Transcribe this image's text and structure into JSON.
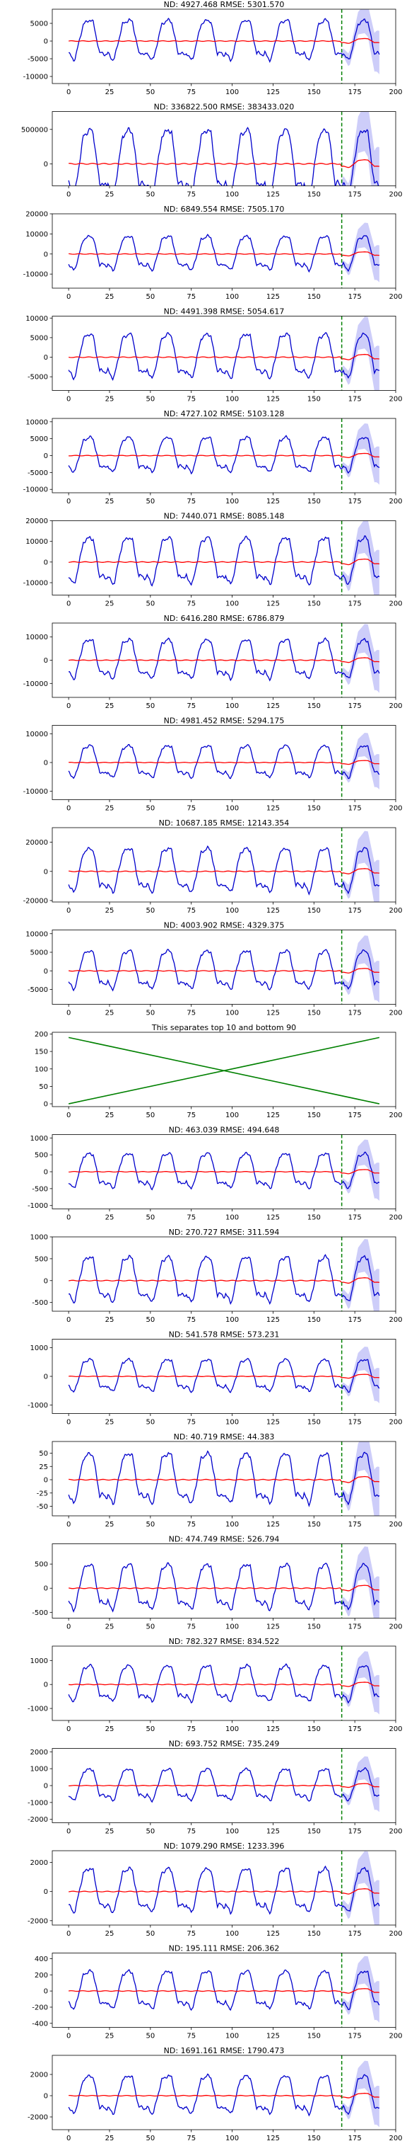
{
  "chart_data": [
    {
      "type": "line",
      "title": "ND:  4927.468 RMSE:  5301.570",
      "amp": 6000,
      "yticks": [
        5000,
        0,
        -5000,
        -10000
      ],
      "ylim": [
        -12000,
        9000
      ],
      "xlim": [
        -10,
        200
      ],
      "xticks": [
        0,
        25,
        50,
        75,
        100,
        125,
        150,
        175,
        200
      ],
      "show_xticks": true,
      "forecast_start": 167
    },
    {
      "type": "line",
      "title": "ND:  336822.500 RMSE:  383433.020",
      "amp": 500000,
      "yticks": [
        500000,
        0
      ],
      "ylim": [
        -320000,
        760000
      ],
      "xlim": [
        -10,
        200
      ],
      "xticks": [
        0,
        25,
        50,
        75,
        100,
        125,
        150,
        175,
        200
      ],
      "show_xticks": true,
      "forecast_start": 167
    },
    {
      "type": "line",
      "title": "ND:  6849.554 RMSE:  7505.170",
      "amp": 9000,
      "yticks": [
        20000,
        10000,
        0,
        -10000
      ],
      "ylim": [
        -17000,
        20000
      ],
      "xlim": [
        -10,
        200
      ],
      "xticks": [
        0,
        25,
        50,
        75,
        100,
        125,
        150,
        175,
        200
      ],
      "show_xticks": true,
      "forecast_start": 167
    },
    {
      "type": "line",
      "title": "ND:  4491.398 RMSE:  5054.617",
      "amp": 6000,
      "yticks": [
        10000,
        5000,
        0,
        -5000
      ],
      "ylim": [
        -8500,
        10500
      ],
      "xlim": [
        -10,
        200
      ],
      "xticks": [
        0,
        25,
        50,
        75,
        100,
        125,
        150,
        175,
        200
      ],
      "show_xticks": true,
      "forecast_start": 167
    },
    {
      "type": "line",
      "title": "ND:  4727.102 RMSE:  5103.128",
      "amp": 5500,
      "yticks": [
        10000,
        5000,
        0,
        -5000,
        -10000
      ],
      "ylim": [
        -11000,
        11000
      ],
      "xlim": [
        -10,
        200
      ],
      "xticks": [
        0,
        25,
        50,
        75,
        100,
        125,
        150,
        175,
        200
      ],
      "show_xticks": true,
      "forecast_start": 167
    },
    {
      "type": "line",
      "title": "ND:  7440.071 RMSE:  8085.148",
      "amp": 12000,
      "yticks": [
        20000,
        10000,
        0,
        -10000
      ],
      "ylim": [
        -16000,
        20000
      ],
      "xlim": [
        -10,
        200
      ],
      "xticks": [
        0,
        25,
        50,
        75,
        100,
        125,
        150,
        175,
        200
      ],
      "show_xticks": true,
      "forecast_start": 167
    },
    {
      "type": "line",
      "title": "ND:  6416.280 RMSE:  6786.879",
      "amp": 9000,
      "yticks": [
        10000,
        0,
        -10000
      ],
      "ylim": [
        -16000,
        16000
      ],
      "xlim": [
        -10,
        200
      ],
      "xticks": [
        0,
        25,
        50,
        75,
        100,
        125,
        150,
        175,
        200
      ],
      "show_xticks": true,
      "forecast_start": 167
    },
    {
      "type": "line",
      "title": "ND:  4981.452 RMSE:  5294.175",
      "amp": 6000,
      "yticks": [
        10000,
        0,
        -10000
      ],
      "ylim": [
        -13000,
        13000
      ],
      "xlim": [
        -10,
        200
      ],
      "xticks": [
        0,
        25,
        50,
        75,
        100,
        125,
        150,
        175,
        200
      ],
      "show_xticks": true,
      "forecast_start": 167
    },
    {
      "type": "line",
      "title": "ND:  10687.185 RMSE:  12143.354",
      "amp": 16000,
      "yticks": [
        20000,
        0,
        -20000
      ],
      "ylim": [
        -21000,
        30000
      ],
      "xlim": [
        -10,
        200
      ],
      "xticks": [
        0,
        25,
        50,
        75,
        100,
        125,
        150,
        175,
        200
      ],
      "show_xticks": true,
      "forecast_start": 167
    },
    {
      "type": "line",
      "title": "ND:  4003.902 RMSE:  4329.375",
      "amp": 5500,
      "yticks": [
        10000,
        5000,
        0,
        -5000
      ],
      "ylim": [
        -9000,
        11000
      ],
      "xlim": [
        -10,
        200
      ],
      "xticks": [
        0,
        25,
        50,
        75,
        100,
        125,
        150,
        175,
        200
      ],
      "show_xticks": true,
      "forecast_start": 167
    },
    {
      "type": "separator",
      "title": "This separates top 10 and bottom 90",
      "yticks": [
        200,
        150,
        100,
        50,
        0
      ],
      "ylim": [
        -8,
        205
      ],
      "xlim": [
        -10,
        200
      ],
      "xticks": [
        0,
        25,
        50,
        75,
        100,
        125,
        150,
        175,
        200
      ],
      "show_xticks": true,
      "lines": [
        {
          "x": [
            0,
            190
          ],
          "y": [
            190,
            0
          ]
        },
        {
          "x": [
            0,
            190
          ],
          "y": [
            0,
            190
          ]
        }
      ]
    },
    {
      "type": "line",
      "title": "ND:  463.039 RMSE:  494.648",
      "amp": 550,
      "yticks": [
        1000,
        500,
        0,
        -500,
        -1000
      ],
      "ylim": [
        -1100,
        1100
      ],
      "xlim": [
        -10,
        200
      ],
      "xticks": [
        0,
        25,
        50,
        75,
        100,
        125,
        150,
        175,
        200
      ],
      "show_xticks": true,
      "forecast_start": 167
    },
    {
      "type": "line",
      "title": "ND:  270.727 RMSE:  311.594",
      "amp": 550,
      "yticks": [
        1000,
        500,
        0,
        -500
      ],
      "ylim": [
        -700,
        1000
      ],
      "xlim": [
        -10,
        200
      ],
      "xticks": [
        0,
        25,
        50,
        75,
        100,
        125,
        150,
        175,
        200
      ],
      "show_xticks": true,
      "forecast_start": 167
    },
    {
      "type": "line",
      "title": "ND:  541.578 RMSE:  573.231",
      "amp": 600,
      "yticks": [
        1000,
        0,
        -1000
      ],
      "ylim": [
        -1300,
        1300
      ],
      "xlim": [
        -10,
        200
      ],
      "xticks": [
        0,
        25,
        50,
        75,
        100,
        125,
        150,
        175,
        200
      ],
      "show_xticks": true,
      "forecast_start": 167
    },
    {
      "type": "line",
      "title": "ND:  40.719 RMSE:  44.383",
      "amp": 50,
      "yticks": [
        50,
        25,
        0,
        -25,
        -50
      ],
      "ylim": [
        -68,
        72
      ],
      "xlim": [
        -10,
        200
      ],
      "xticks": [
        0,
        25,
        50,
        75,
        100,
        125,
        150,
        175,
        200
      ],
      "show_xticks": true,
      "forecast_start": 167
    },
    {
      "type": "line",
      "title": "ND:  474.749 RMSE:  526.794",
      "amp": 500,
      "yticks": [
        500,
        0,
        -500
      ],
      "ylim": [
        -620,
        920
      ],
      "xlim": [
        -10,
        200
      ],
      "xticks": [
        0,
        25,
        50,
        75,
        100,
        125,
        150,
        175,
        200
      ],
      "show_xticks": true,
      "forecast_start": 167
    },
    {
      "type": "line",
      "title": "ND:  782.327 RMSE:  834.522",
      "amp": 800,
      "yticks": [
        1000,
        0,
        -1000
      ],
      "ylim": [
        -1500,
        1600
      ],
      "xlim": [
        -10,
        200
      ],
      "xticks": [
        0,
        25,
        50,
        75,
        100,
        125,
        150,
        175,
        200
      ],
      "show_xticks": true,
      "forecast_start": 167
    },
    {
      "type": "line",
      "title": "ND:  693.752 RMSE:  735.249",
      "amp": 1000,
      "yticks": [
        2000,
        1000,
        0,
        -1000,
        -2000
      ],
      "ylim": [
        -2200,
        2200
      ],
      "xlim": [
        -10,
        200
      ],
      "xticks": [
        0,
        25,
        50,
        75,
        100,
        125,
        150,
        175,
        200
      ],
      "show_xticks": true,
      "forecast_start": 167
    },
    {
      "type": "line",
      "title": "ND:  1079.290 RMSE:  1233.396",
      "amp": 1600,
      "yticks": [
        2000,
        0,
        -2000
      ],
      "ylim": [
        -2300,
        2800
      ],
      "xlim": [
        -10,
        200
      ],
      "xticks": [
        0,
        25,
        50,
        75,
        100,
        125,
        150,
        175,
        200
      ],
      "show_xticks": true,
      "forecast_start": 167
    },
    {
      "type": "line",
      "title": "ND:  195.111 RMSE:  206.362",
      "amp": 250,
      "yticks": [
        400,
        200,
        0,
        -200,
        -400
      ],
      "ylim": [
        -450,
        470
      ],
      "xlim": [
        -10,
        200
      ],
      "xticks": [
        0,
        25,
        50,
        75,
        100,
        125,
        150,
        175,
        200
      ],
      "show_xticks": true,
      "forecast_start": 167
    },
    {
      "type": "line",
      "title": "ND:  1691.161 RMSE:  1790.473",
      "amp": 1900,
      "yticks": [
        2000,
        0,
        -2000
      ],
      "ylim": [
        -3200,
        3800
      ],
      "xlim": [
        -10,
        200
      ],
      "xticks": [
        0,
        25,
        50,
        75,
        100,
        125,
        150,
        175,
        200
      ],
      "show_xticks": true,
      "forecast_start": 167
    }
  ],
  "colors": {
    "actual": "#0000cc",
    "prediction": "#ff0000",
    "interval": "#c8c8f8",
    "forecast_marker": "#008000",
    "separator_lines": "#008000",
    "axes": "#000000"
  }
}
